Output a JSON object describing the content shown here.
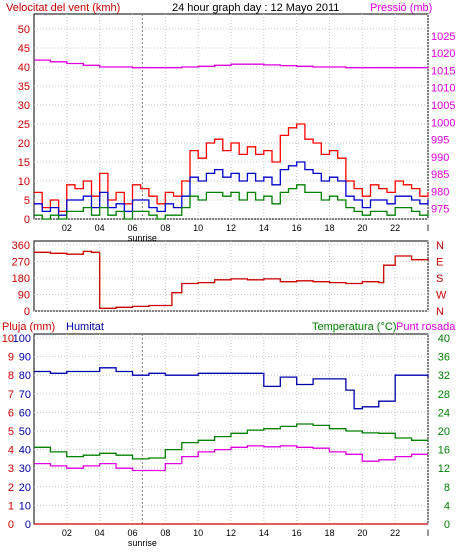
{
  "chart_data": [
    {
      "type": "line",
      "title": "24 hour graph day : 12 Mayo 2011",
      "ylabel_left": "Velocitat del vent (kmh)",
      "ylabel_right": "Pressió (mb)",
      "x_ticks": [
        "02",
        "04",
        "06",
        "08",
        "10",
        "12",
        "14",
        "16",
        "18",
        "20",
        "22",
        "I"
      ],
      "x_annotation": "sunrise",
      "ylim_left": [
        0,
        50
      ],
      "yticks_left": [
        0,
        5,
        10,
        15,
        20,
        25,
        30,
        35,
        40,
        45,
        50
      ],
      "ylim_right": [
        972,
        1027
      ],
      "yticks_right": [
        975,
        980,
        985,
        990,
        995,
        1000,
        1005,
        1010,
        1015,
        1020,
        1025
      ],
      "colors": {
        "gust": "#ff0000",
        "average": "#0000cc",
        "low": "#008000",
        "pressure": "#e000e0"
      },
      "series": [
        {
          "key": "gust",
          "axis": "left",
          "x": [
            0,
            0.5,
            1,
            1.5,
            2,
            2.5,
            3,
            3.5,
            4,
            4.5,
            5,
            5.5,
            6,
            6.5,
            7,
            7.5,
            8,
            8.5,
            9,
            9.5,
            10,
            10.5,
            11,
            11.5,
            12,
            12.5,
            13,
            13.5,
            14,
            14.5,
            15,
            15.5,
            16,
            16.5,
            17,
            17.5,
            18,
            18.5,
            19,
            19.5,
            20,
            20.5,
            21,
            21.5,
            22,
            22.5,
            23,
            23.5,
            24
          ],
          "y": [
            7,
            3,
            5,
            2,
            9,
            8,
            10,
            6,
            12,
            5,
            7,
            4,
            9,
            8,
            6,
            4,
            7,
            6,
            10,
            18,
            16,
            20,
            21,
            18,
            20,
            17,
            19,
            17,
            18,
            15,
            22,
            24,
            25,
            21,
            20,
            17,
            18,
            16,
            10,
            8,
            6,
            9,
            8,
            7,
            10,
            9,
            8,
            6,
            7
          ]
        },
        {
          "key": "average",
          "axis": "left",
          "x": [
            0,
            0.5,
            1,
            1.5,
            2,
            2.5,
            3,
            3.5,
            4,
            4.5,
            5,
            5.5,
            6,
            6.5,
            7,
            7.5,
            8,
            8.5,
            9,
            9.5,
            10,
            10.5,
            11,
            11.5,
            12,
            12.5,
            13,
            13.5,
            14,
            14.5,
            15,
            15.5,
            16,
            16.5,
            17,
            17.5,
            18,
            18.5,
            19,
            19.5,
            20,
            20.5,
            21,
            21.5,
            22,
            22.5,
            23,
            23.5,
            24
          ],
          "y": [
            4,
            2,
            3,
            1,
            5,
            5,
            6,
            3,
            7,
            3,
            4,
            2,
            5,
            5,
            3,
            2,
            4,
            3,
            6,
            11,
            10,
            12,
            13,
            11,
            12,
            10,
            12,
            10,
            11,
            9,
            13,
            14,
            15,
            13,
            12,
            10,
            11,
            10,
            6,
            5,
            3,
            5,
            5,
            4,
            6,
            6,
            5,
            4,
            5
          ]
        },
        {
          "key": "low",
          "axis": "left",
          "x": [
            0,
            0.5,
            1,
            1.5,
            2,
            2.5,
            3,
            3.5,
            4,
            4.5,
            5,
            5.5,
            6,
            6.5,
            7,
            7.5,
            8,
            8.5,
            9,
            9.5,
            10,
            10.5,
            11,
            11.5,
            12,
            12.5,
            13,
            13.5,
            14,
            14.5,
            15,
            15.5,
            16,
            16.5,
            17,
            17.5,
            18,
            18.5,
            19,
            19.5,
            20,
            20.5,
            21,
            21.5,
            22,
            22.5,
            23,
            23.5,
            24
          ],
          "y": [
            1,
            0,
            1,
            0,
            2,
            2,
            3,
            1,
            3,
            1,
            2,
            0,
            2,
            2,
            1,
            0,
            1,
            1,
            3,
            6,
            5,
            7,
            7,
            6,
            7,
            5,
            7,
            5,
            6,
            4,
            7,
            8,
            9,
            7,
            7,
            5,
            6,
            5,
            3,
            2,
            1,
            2,
            2,
            1,
            3,
            3,
            2,
            1,
            2
          ]
        },
        {
          "key": "pressure",
          "axis": "right",
          "x": [
            0,
            1,
            2,
            3,
            4,
            5,
            6,
            7,
            8,
            9,
            10,
            11,
            12,
            13,
            14,
            15,
            16,
            17,
            18,
            19,
            20,
            21,
            22,
            23,
            24
          ],
          "y": [
            1018,
            1017.5,
            1017,
            1016.5,
            1016,
            1016,
            1015.8,
            1015.8,
            1015.8,
            1016,
            1016.2,
            1016.5,
            1016.8,
            1016.8,
            1016.6,
            1016.4,
            1016.2,
            1016,
            1016,
            1015.8,
            1015.8,
            1015.8,
            1015.8,
            1015.8,
            1016
          ]
        }
      ]
    },
    {
      "type": "line",
      "ylim": [
        0,
        360
      ],
      "yticks": [
        0,
        90,
        180,
        270,
        360
      ],
      "ytick_labels": [
        "0",
        "90",
        "180",
        "270",
        "360"
      ],
      "direction_labels": [
        "N",
        "W",
        "S",
        "E",
        "N"
      ],
      "colors": {
        "direction": "#cc0000",
        "direction_labels": "#cc0000"
      },
      "series": [
        {
          "key": "direction",
          "x": [
            0,
            1,
            2,
            3,
            3.5,
            4,
            4.5,
            5,
            6,
            7,
            8,
            8.4,
            9,
            10,
            11,
            12,
            13,
            14,
            15,
            16,
            17,
            18,
            19,
            20,
            21,
            21.3,
            22,
            23,
            24
          ],
          "y": [
            320,
            315,
            310,
            325,
            320,
            15,
            15,
            20,
            25,
            30,
            30,
            100,
            150,
            155,
            170,
            175,
            170,
            175,
            160,
            165,
            160,
            155,
            150,
            160,
            155,
            250,
            300,
            280,
            285
          ]
        }
      ]
    },
    {
      "type": "line",
      "ylabel_left_1": "Pluja (mm)",
      "ylabel_left_2": "Humitat",
      "ylabel_right": "Temperatura (°C)",
      "ylabel_right_2": "Punt rosada",
      "x_ticks": [
        "02",
        "04",
        "06",
        "08",
        "10",
        "12",
        "14",
        "16",
        "18",
        "20",
        "22",
        "I"
      ],
      "x_annotation": "sunrise",
      "ylim_left_rain": [
        0,
        10
      ],
      "yticks_left_rain": [
        0,
        1,
        2,
        3,
        4,
        5,
        6,
        7,
        8,
        9,
        10
      ],
      "ylim_left_hum": [
        0,
        100
      ],
      "yticks_left_hum": [
        0,
        10,
        20,
        30,
        40,
        50,
        60,
        70,
        80,
        90,
        100
      ],
      "ylim_right": [
        0,
        40
      ],
      "yticks_right": [
        0,
        4,
        8,
        12,
        16,
        20,
        24,
        28,
        32,
        36,
        40
      ],
      "colors": {
        "rain": "#cc0000",
        "humidity": "#0000aa",
        "temperature": "#008000",
        "dew": "#e000e0"
      },
      "series": [
        {
          "key": "humidity",
          "axis": "left_hum",
          "x": [
            0,
            1,
            2,
            3,
            4,
            5,
            6,
            7,
            8,
            9,
            10,
            11,
            12,
            13,
            14,
            15,
            16,
            17,
            18,
            19,
            19.5,
            20,
            21,
            22,
            23,
            24
          ],
          "y": [
            82,
            81,
            82,
            82,
            84,
            82,
            80,
            81,
            80,
            80,
            81,
            81,
            81,
            81,
            74,
            79,
            75,
            78,
            78,
            72,
            62,
            63,
            66,
            80,
            80,
            79
          ]
        },
        {
          "key": "temperature",
          "axis": "right",
          "x": [
            0,
            1,
            2,
            3,
            4,
            5,
            6,
            7,
            8,
            9,
            10,
            11,
            12,
            13,
            14,
            15,
            16,
            17,
            18,
            19,
            20,
            21,
            22,
            23,
            24
          ],
          "y": [
            16.5,
            15.5,
            14.5,
            14.8,
            15.2,
            14.8,
            14,
            14.2,
            16,
            17.5,
            18,
            18.8,
            19.5,
            20.2,
            20.5,
            21,
            21.5,
            21.2,
            20.5,
            20,
            19.6,
            19.5,
            18.5,
            18,
            18.2
          ]
        },
        {
          "key": "dew",
          "axis": "right",
          "x": [
            0,
            1,
            2,
            3,
            4,
            5,
            6,
            7,
            8,
            9,
            10,
            11,
            12,
            13,
            14,
            15,
            16,
            17,
            18,
            19,
            20,
            21,
            22,
            23,
            24
          ],
          "y": [
            13,
            12.5,
            12,
            12.5,
            13,
            12,
            11.5,
            11.5,
            13,
            14.5,
            15.5,
            16,
            16.5,
            16.8,
            16.6,
            16.8,
            16.5,
            16.3,
            15.5,
            15,
            13.5,
            13.8,
            14.5,
            15,
            15
          ]
        },
        {
          "key": "rain",
          "axis": "left_rain",
          "x": [
            0,
            24
          ],
          "y": [
            0,
            0
          ]
        }
      ]
    }
  ]
}
